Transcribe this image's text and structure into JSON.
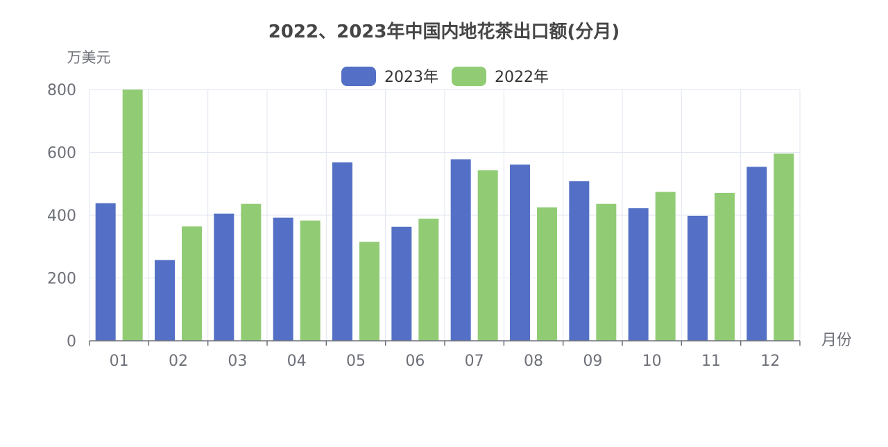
{
  "chart_data": {
    "type": "bar",
    "title": "2022、2023年中国内地花茶出口额(分月)",
    "ylabel": "万美元",
    "xlabel": "月份",
    "categories": [
      "01",
      "02",
      "03",
      "04",
      "05",
      "06",
      "07",
      "08",
      "09",
      "10",
      "11",
      "12"
    ],
    "ylim": [
      0,
      800
    ],
    "yticks": [
      0,
      200,
      400,
      600,
      800
    ],
    "grid": true,
    "legend_position": "top-center",
    "series": [
      {
        "name": "2023年",
        "color": "#5470c6",
        "values": [
          438,
          257,
          405,
          392,
          568,
          363,
          578,
          561,
          508,
          422,
          398,
          554
        ]
      },
      {
        "name": "2022年",
        "color": "#91cc75",
        "values": [
          800,
          364,
          436,
          383,
          315,
          389,
          543,
          425,
          436,
          474,
          471,
          596
        ]
      }
    ]
  }
}
